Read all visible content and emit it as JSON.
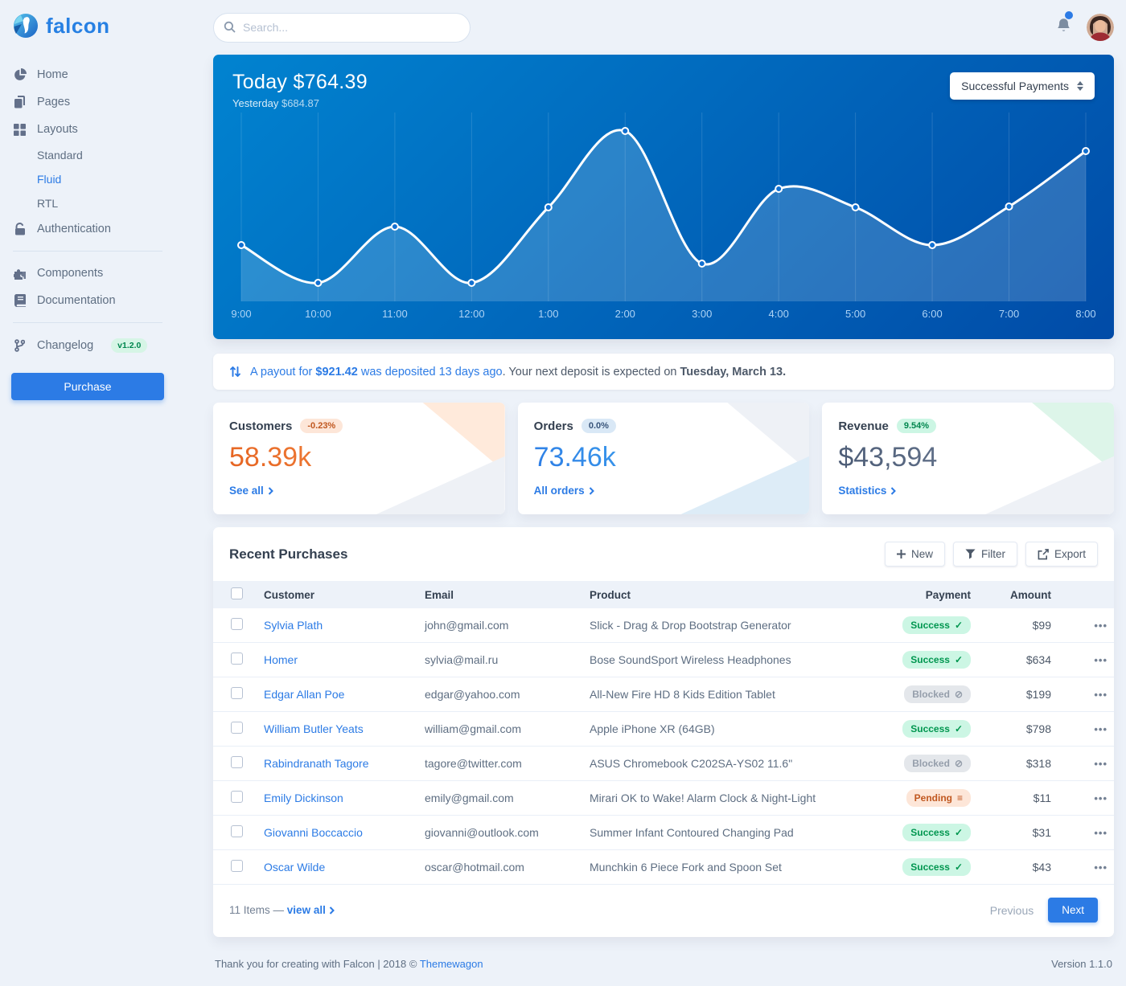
{
  "brand": {
    "name": "falcon"
  },
  "search": {
    "placeholder": "Search..."
  },
  "colors": {
    "primary": "#2c7be5",
    "success_text": "#00964f",
    "success_bg": "#ccf6e4",
    "warning_text": "#c0571f",
    "warning_bg": "#fde6d8",
    "blocked_text": "#959eab",
    "blocked_bg": "#e4e7eb",
    "chart_gradient_start": "#014ba7",
    "chart_gradient_end": "#0183d0"
  },
  "sidebar": {
    "items": [
      {
        "label": "Home",
        "icon": "chart-pie-icon"
      },
      {
        "label": "Pages",
        "icon": "copy-icon"
      },
      {
        "label": "Layouts",
        "icon": "grid-icon",
        "children": [
          "Standard",
          "Fluid",
          "RTL"
        ],
        "active_child": "Fluid"
      },
      {
        "label": "Authentication",
        "icon": "lock-icon"
      },
      {
        "label": "Components",
        "icon": "puzzle-icon"
      },
      {
        "label": "Documentation",
        "icon": "book-icon"
      },
      {
        "label": "Changelog",
        "icon": "code-branch-icon",
        "badge": "v1.2.0"
      }
    ],
    "purchase_label": "Purchase"
  },
  "topbar": {
    "notification_dot": true
  },
  "revenue_card": {
    "title_label": "Today",
    "title_value": "$764.39",
    "subtitle_label": "Yesterday",
    "subtitle_value": "$684.87",
    "dropdown_value": "Successful Payments"
  },
  "chart_data": {
    "type": "line",
    "title": "Today $764.39",
    "subtitle": "Yesterday $684.87",
    "series": [
      {
        "name": "Successful Payments",
        "values": [
          70,
          23,
          93,
          23,
          117,
          212,
          47,
          140,
          117,
          70,
          118,
          187
        ]
      }
    ],
    "x": [
      "9:00",
      "10:00",
      "11:00",
      "12:00",
      "1:00",
      "2:00",
      "3:00",
      "4:00",
      "5:00",
      "6:00",
      "7:00",
      "8:00"
    ],
    "ylim": [
      0,
      230
    ],
    "y_axis_visible": false,
    "grid": "vertical",
    "legend_position": "none",
    "line_color": "#ffffff",
    "area_fill": "rgba(255,255,255,0.17)"
  },
  "payout": {
    "highlight": "A payout for",
    "amount": "$921.42",
    "highlight2": "was deposited 13 days ago",
    "rest": ". Your next deposit is expected on",
    "date": "Tuesday, March 13."
  },
  "stats": [
    {
      "title": "Customers",
      "badge": "-0.23%",
      "value": "58.39k",
      "link": "See all"
    },
    {
      "title": "Orders",
      "badge": "0.0%",
      "value": "73.46k",
      "link": "All orders"
    },
    {
      "title": "Revenue",
      "badge": "9.54%",
      "value": "$43,594",
      "link": "Statistics"
    }
  ],
  "table": {
    "title": "Recent Purchases",
    "buttons": {
      "new": "New",
      "filter": "Filter",
      "export": "Export"
    },
    "columns": {
      "customer": "Customer",
      "email": "Email",
      "product": "Product",
      "payment": "Payment",
      "amount": "Amount"
    },
    "status_icons": {
      "success": "✓",
      "blocked": "⊘",
      "pending": "≡"
    },
    "row_actions_glyph": "•••",
    "rows": [
      {
        "customer": "Sylvia Plath",
        "email": "john@gmail.com",
        "product": "Slick - Drag & Drop Bootstrap Generator",
        "payment": "Success",
        "payment_status": "success",
        "amount": "$99"
      },
      {
        "customer": "Homer",
        "email": "sylvia@mail.ru",
        "product": "Bose SoundSport Wireless Headphones",
        "payment": "Success",
        "payment_status": "success",
        "amount": "$634"
      },
      {
        "customer": "Edgar Allan Poe",
        "email": "edgar@yahoo.com",
        "product": "All-New Fire HD 8 Kids Edition Tablet",
        "payment": "Blocked",
        "payment_status": "blocked",
        "amount": "$199"
      },
      {
        "customer": "William Butler Yeats",
        "email": "william@gmail.com",
        "product": "Apple iPhone XR (64GB)",
        "payment": "Success",
        "payment_status": "success",
        "amount": "$798"
      },
      {
        "customer": "Rabindranath Tagore",
        "email": "tagore@twitter.com",
        "product": "ASUS Chromebook C202SA-YS02 11.6\"",
        "payment": "Blocked",
        "payment_status": "blocked",
        "amount": "$318"
      },
      {
        "customer": "Emily Dickinson",
        "email": "emily@gmail.com",
        "product": "Mirari OK to Wake! Alarm Clock & Night-Light",
        "payment": "Pending",
        "payment_status": "pending",
        "amount": "$11"
      },
      {
        "customer": "Giovanni Boccaccio",
        "email": "giovanni@outlook.com",
        "product": "Summer Infant Contoured Changing Pad",
        "payment": "Success",
        "payment_status": "success",
        "amount": "$31"
      },
      {
        "customer": "Oscar Wilde",
        "email": "oscar@hotmail.com",
        "product": "Munchkin 6 Piece Fork and Spoon Set",
        "payment": "Success",
        "payment_status": "success",
        "amount": "$43"
      }
    ],
    "footer": {
      "count": "11 Items —",
      "view_all": "view all",
      "previous": "Previous",
      "next": "Next"
    }
  },
  "page_footer": {
    "thanks": "Thank you for creating with Falcon | 2018 ©",
    "link": "Themewagon",
    "version": "Version 1.1.0"
  }
}
